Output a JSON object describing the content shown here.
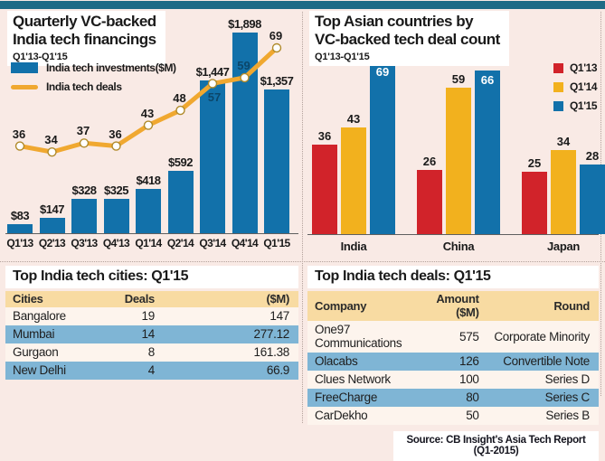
{
  "colors": {
    "top_bar": "#1d6b86",
    "bar_blue": "#1271aa",
    "line_orange": "#f0a830",
    "red": "#d1232a",
    "yellow": "#f2b11e",
    "table_header_tan": "#f8dba2",
    "table_row_blue": "#7fb5d5",
    "panel_background": "#f9eae5"
  },
  "panels": {
    "financings": {
      "title1": "Quarterly VC-backed",
      "title2": "India tech financings",
      "subtitle": "Q1'13-Q1'15"
    },
    "asian": {
      "title1": "Top Asian countries by",
      "title2": "VC-backed tech deal count",
      "subtitle": "Q1'13-Q1'15"
    }
  },
  "source": "Source: CB Insight's Asia Tech Report (Q1-2015)",
  "chart_data": [
    {
      "id": "quarterly_financings",
      "type": "bar+line",
      "title": "Quarterly VC-backed India tech financings",
      "subtitle": "Q1'13-Q1'15",
      "categories": [
        "Q1'13",
        "Q2'13",
        "Q3'13",
        "Q4'13",
        "Q1'14",
        "Q2'14",
        "Q3'14",
        "Q4'14",
        "Q1'15"
      ],
      "series": [
        {
          "name": "India tech investments($M)",
          "type": "bar",
          "color": "#1271aa",
          "values": [
            83,
            147,
            328,
            325,
            418,
            592,
            1447,
            1898,
            1357
          ],
          "labels": [
            "$83",
            "$147",
            "$328",
            "$325",
            "$418",
            "$592",
            "$1,447",
            "$1,898",
            "$1,357"
          ]
        },
        {
          "name": "India tech deals",
          "type": "line",
          "color": "#f0a830",
          "values": [
            36,
            34,
            37,
            36,
            43,
            48,
            57,
            59,
            69
          ],
          "inside_labels": [
            6,
            7
          ],
          "label_offsets": {
            "6": [
              2,
              8
            ]
          }
        }
      ],
      "legend_position": "top-left",
      "grid": false
    },
    {
      "id": "asian_deal_count",
      "type": "bar",
      "title": "Top Asian countries by VC-backed tech deal count",
      "subtitle": "Q1'13-Q1'15",
      "categories": [
        "India",
        "China",
        "Japan"
      ],
      "series": [
        {
          "name": "Q1'13",
          "color": "#d1232a",
          "values": [
            36,
            26,
            25
          ]
        },
        {
          "name": "Q1'14",
          "color": "#f2b11e",
          "values": [
            43,
            59,
            34
          ]
        },
        {
          "name": "Q1'15",
          "color": "#1271aa",
          "values": [
            69,
            66,
            28
          ],
          "inside": [
            true,
            true,
            false
          ]
        }
      ],
      "legend_position": "top-right",
      "grid": false
    },
    {
      "id": "top_cities",
      "type": "table",
      "title": "Top India tech cities: Q1'15",
      "columns": [
        "Cities",
        "Deals",
        "($M)"
      ],
      "rows": [
        [
          "Bangalore",
          "19",
          "147"
        ],
        [
          "Mumbai",
          "14",
          "277.12"
        ],
        [
          "Gurgaon",
          "8",
          "161.38"
        ],
        [
          "New Delhi",
          "4",
          "66.9"
        ]
      ]
    },
    {
      "id": "top_deals",
      "type": "table",
      "title": "Top India tech deals: Q1'15",
      "columns": [
        "Company",
        "Amount ($M)",
        "Round"
      ],
      "rows": [
        [
          "One97 Communications",
          "575",
          "Corporate Minority"
        ],
        [
          "Olacabs",
          "126",
          "Convertible Note"
        ],
        [
          "Clues Network",
          "100",
          "Series D"
        ],
        [
          "FreeCharge",
          "80",
          "Series C"
        ],
        [
          "CarDekho",
          "50",
          "Series B"
        ]
      ]
    }
  ]
}
